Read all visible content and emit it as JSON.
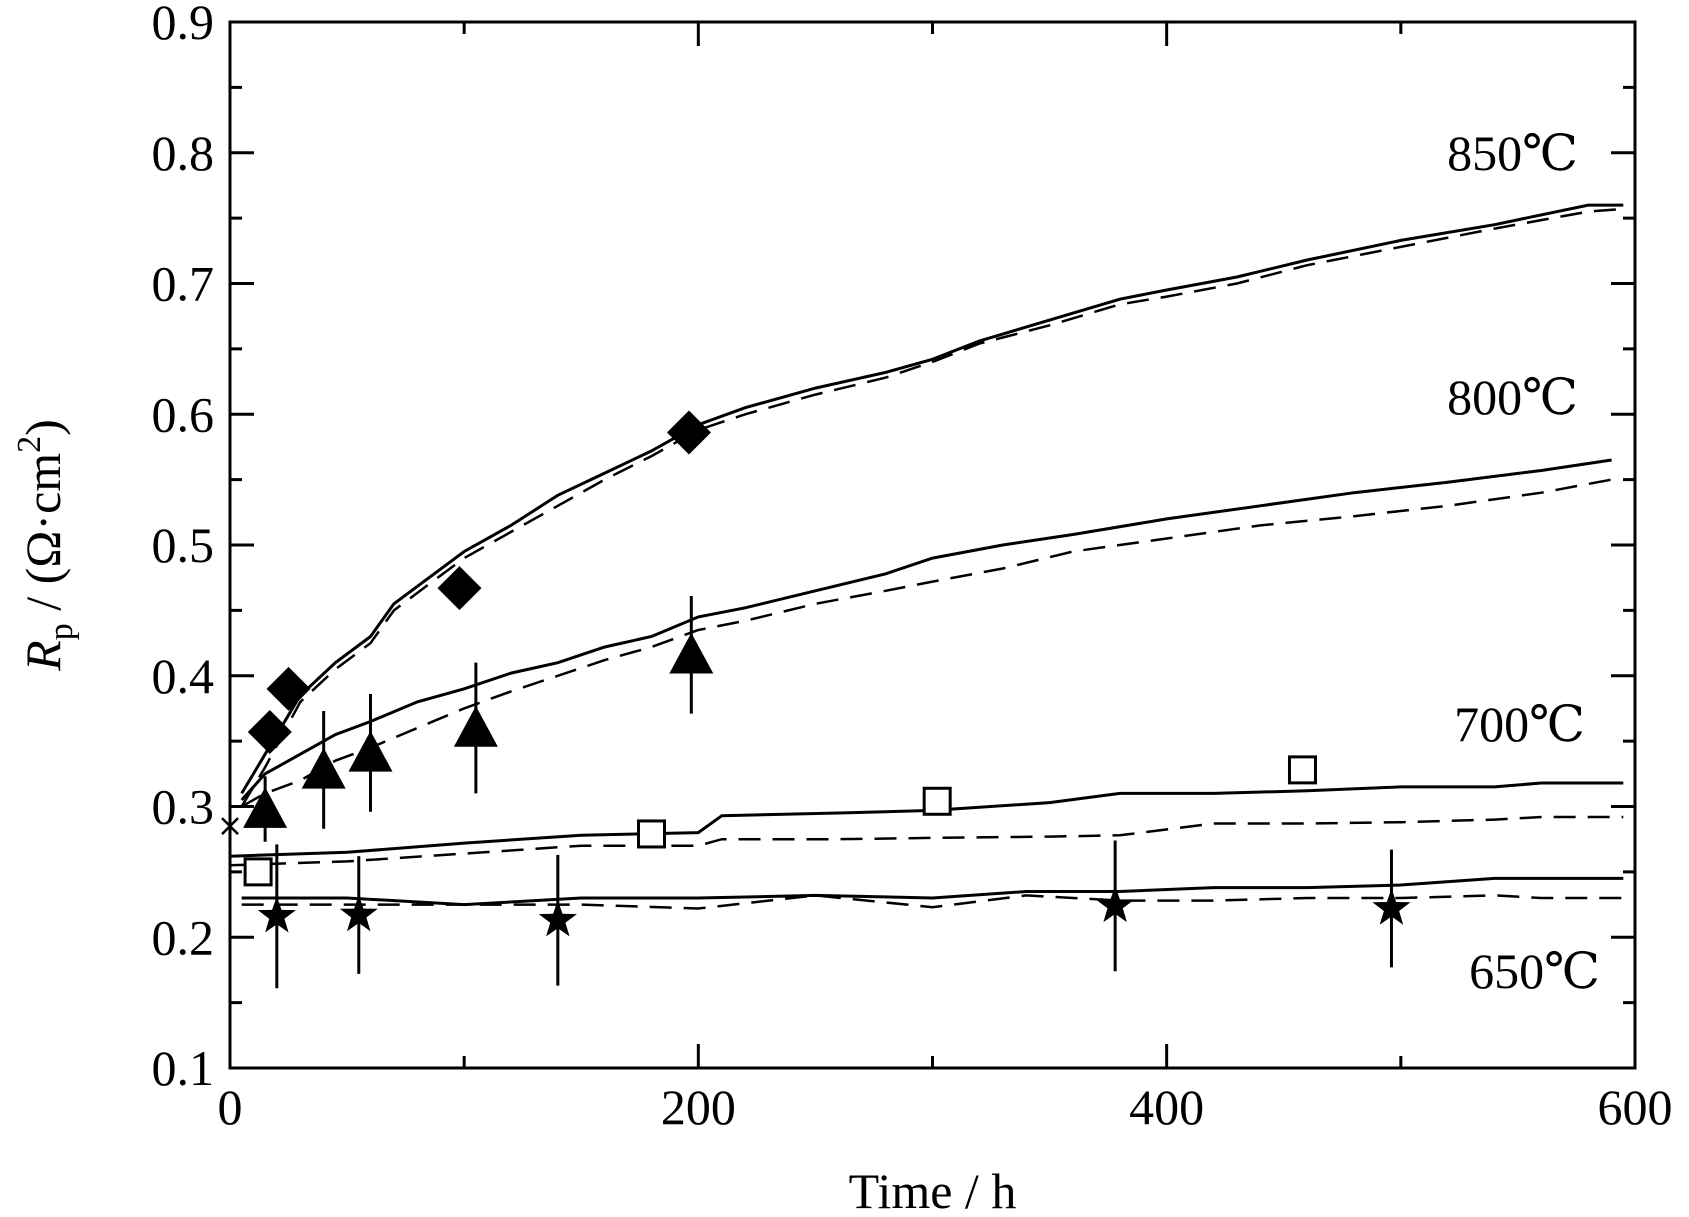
{
  "chart_data": {
    "type": "line",
    "xlabel": "Time / h",
    "ylabel": {
      "symbol": "R",
      "subscript": "p",
      "rest": " / (Ω·cm",
      "superscript": "2",
      "close": ")"
    },
    "xlim": [
      0,
      600
    ],
    "ylim": [
      0.1,
      0.9
    ],
    "xticks": [
      "0",
      "200",
      "400",
      "600"
    ],
    "yticks": [
      "0.1",
      "0.2",
      "0.3",
      "0.4",
      "0.5",
      "0.6",
      "0.7",
      "0.8",
      "0.9"
    ],
    "grid": false,
    "series": [
      {
        "name": "850℃",
        "marker": "diamond",
        "points": {
          "x": [
            17,
            25,
            98,
            196
          ],
          "y": [
            0.357,
            0.39,
            0.467,
            0.586
          ]
        },
        "fit_solid": {
          "x": [
            5,
            15,
            30,
            45,
            60,
            70,
            85,
            100,
            120,
            140,
            160,
            180,
            200,
            220,
            250,
            280,
            300,
            320,
            350,
            380,
            400,
            430,
            460,
            500,
            540,
            580,
            595
          ],
          "y": [
            0.31,
            0.34,
            0.385,
            0.41,
            0.43,
            0.455,
            0.475,
            0.495,
            0.515,
            0.538,
            0.555,
            0.572,
            0.592,
            0.605,
            0.62,
            0.632,
            0.642,
            0.656,
            0.672,
            0.688,
            0.695,
            0.705,
            0.718,
            0.733,
            0.745,
            0.76,
            0.76
          ]
        },
        "fit_dashed": {
          "x": [
            5,
            15,
            30,
            45,
            60,
            70,
            85,
            100,
            120,
            140,
            160,
            180,
            200,
            220,
            250,
            280,
            300,
            320,
            350,
            380,
            400,
            430,
            460,
            500,
            540,
            580,
            595
          ],
          "y": [
            0.3,
            0.33,
            0.38,
            0.405,
            0.425,
            0.45,
            0.47,
            0.49,
            0.51,
            0.53,
            0.55,
            0.568,
            0.588,
            0.6,
            0.615,
            0.628,
            0.64,
            0.654,
            0.668,
            0.684,
            0.69,
            0.7,
            0.714,
            0.728,
            0.742,
            0.755,
            0.757
          ]
        }
      },
      {
        "name": "800℃",
        "marker": "triangle",
        "points": {
          "x": [
            15,
            40,
            60,
            105,
            197
          ],
          "y": [
            0.298,
            0.328,
            0.341,
            0.36,
            0.416
          ]
        },
        "error": [
          0.025,
          0.045,
          0.045,
          0.05,
          0.045
        ],
        "fit_solid": {
          "x": [
            5,
            15,
            30,
            45,
            60,
            80,
            100,
            120,
            140,
            160,
            180,
            200,
            220,
            250,
            280,
            300,
            330,
            360,
            400,
            440,
            480,
            520,
            560,
            590
          ],
          "y": [
            0.305,
            0.325,
            0.34,
            0.355,
            0.365,
            0.38,
            0.39,
            0.402,
            0.41,
            0.422,
            0.43,
            0.445,
            0.452,
            0.465,
            0.478,
            0.49,
            0.5,
            0.508,
            0.52,
            0.53,
            0.54,
            0.548,
            0.557,
            0.565
          ]
        },
        "fit_dashed": {
          "x": [
            5,
            15,
            30,
            45,
            60,
            80,
            100,
            120,
            140,
            160,
            180,
            200,
            220,
            250,
            280,
            300,
            330,
            360,
            400,
            440,
            480,
            520,
            560,
            590
          ],
          "y": [
            0.3,
            0.31,
            0.32,
            0.335,
            0.345,
            0.36,
            0.375,
            0.388,
            0.4,
            0.412,
            0.422,
            0.435,
            0.442,
            0.455,
            0.465,
            0.472,
            0.482,
            0.495,
            0.505,
            0.515,
            0.522,
            0.53,
            0.54,
            0.55
          ]
        }
      },
      {
        "name": "700℃",
        "marker": "square-open",
        "points": {
          "x": [
            12,
            180,
            302,
            458
          ],
          "y": [
            0.25,
            0.279,
            0.304,
            0.328
          ]
        },
        "fit_solid": {
          "x": [
            0,
            50,
            100,
            150,
            200,
            210,
            260,
            300,
            350,
            380,
            420,
            460,
            500,
            540,
            560,
            595
          ],
          "y": [
            0.262,
            0.265,
            0.272,
            0.278,
            0.28,
            0.293,
            0.295,
            0.297,
            0.303,
            0.31,
            0.31,
            0.312,
            0.315,
            0.315,
            0.318,
            0.318
          ]
        },
        "fit_dashed": {
          "x": [
            0,
            50,
            100,
            150,
            200,
            210,
            260,
            300,
            350,
            380,
            420,
            460,
            500,
            540,
            560,
            595
          ],
          "y": [
            0.255,
            0.258,
            0.264,
            0.27,
            0.27,
            0.275,
            0.275,
            0.276,
            0.277,
            0.278,
            0.287,
            0.287,
            0.288,
            0.29,
            0.292,
            0.292
          ]
        }
      },
      {
        "name": "650℃",
        "marker": "star",
        "points": {
          "x": [
            20,
            55,
            140,
            378,
            496
          ],
          "y": [
            0.216,
            0.217,
            0.213,
            0.224,
            0.222
          ]
        },
        "error": [
          0.055,
          0.045,
          0.05,
          0.05,
          0.045
        ],
        "fit_solid": {
          "x": [
            5,
            50,
            100,
            150,
            200,
            250,
            300,
            340,
            380,
            420,
            460,
            500,
            540,
            560,
            595
          ],
          "y": [
            0.23,
            0.23,
            0.225,
            0.23,
            0.23,
            0.232,
            0.23,
            0.235,
            0.235,
            0.238,
            0.238,
            0.24,
            0.245,
            0.245,
            0.245
          ]
        },
        "fit_dashed": {
          "x": [
            5,
            50,
            100,
            150,
            200,
            250,
            300,
            340,
            380,
            420,
            460,
            500,
            540,
            560,
            595
          ],
          "y": [
            0.225,
            0.225,
            0.225,
            0.225,
            0.222,
            0.232,
            0.223,
            0.232,
            0.228,
            0.228,
            0.23,
            0.23,
            0.232,
            0.23,
            0.23
          ]
        }
      }
    ]
  }
}
